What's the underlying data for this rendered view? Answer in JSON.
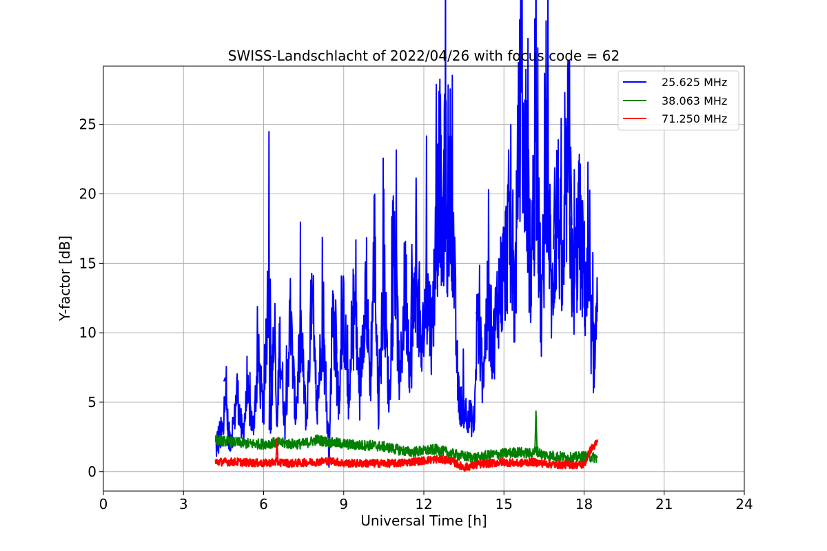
{
  "chart_data": {
    "type": "line",
    "title": "SWISS-Landschlacht of 2022/04/26 with focus code = 62",
    "xlabel": "Universal Time [h]",
    "ylabel": "Y-factor [dB]",
    "xlim": [
      0,
      24
    ],
    "ylim": [
      -1.4,
      29.2
    ],
    "xticks": [
      0,
      3,
      6,
      9,
      12,
      15,
      18,
      21,
      24
    ],
    "xtick_labels": [
      "0",
      "3",
      "6",
      "9",
      "12",
      "15",
      "18",
      "21",
      "24"
    ],
    "yticks": [
      0,
      5,
      10,
      15,
      20,
      25
    ],
    "ytick_labels": [
      "0",
      "5",
      "10",
      "15",
      "20",
      "25"
    ],
    "grid": true,
    "legend_position": "top-right",
    "series": [
      {
        "name": "25.625 MHz",
        "color": "#0000ff",
        "x": [
          4.2,
          4.35,
          4.5,
          4.55,
          4.7,
          4.9,
          5.0,
          5.2,
          5.4,
          5.6,
          5.8,
          6.0,
          6.2,
          6.25,
          6.4,
          6.5,
          6.6,
          6.8,
          7.0,
          7.2,
          7.4,
          7.6,
          7.8,
          8.0,
          8.2,
          8.4,
          8.45,
          8.6,
          8.8,
          9.0,
          9.2,
          9.4,
          9.6,
          9.8,
          10.0,
          10.15,
          10.3,
          10.5,
          10.7,
          10.9,
          11.1,
          11.3,
          11.5,
          11.7,
          11.9,
          12.1,
          12.3,
          12.5,
          12.6,
          12.7,
          12.8,
          12.9,
          13.0,
          13.1,
          13.2,
          13.3,
          13.5,
          13.7,
          13.9,
          14.0,
          14.2,
          14.4,
          14.6,
          14.8,
          15.0,
          15.2,
          15.4,
          15.6,
          15.7,
          15.8,
          16.0,
          16.2,
          16.4,
          16.6,
          16.8,
          17.0,
          17.2,
          17.4,
          17.6,
          17.8,
          18.0,
          18.2,
          18.35,
          18.5
        ],
        "y": [
          1.8,
          2.5,
          3.0,
          6.5,
          2.2,
          3.5,
          6.0,
          2.5,
          5.5,
          3.0,
          8.0,
          4.0,
          13.8,
          3.0,
          10.2,
          2.5,
          9.5,
          3.5,
          11.0,
          4.0,
          9.8,
          3.5,
          12.0,
          4.0,
          11.0,
          3.0,
          1.0,
          12.0,
          5.0,
          11.5,
          4.5,
          12.0,
          5.5,
          13.5,
          6.5,
          16.8,
          4.0,
          14.0,
          5.0,
          16.0,
          6.0,
          14.0,
          7.0,
          15.0,
          8.0,
          13.0,
          10.0,
          18.0,
          22.5,
          14.0,
          23.0,
          15.5,
          22.0,
          17.0,
          10.0,
          5.0,
          4.5,
          4.0,
          3.5,
          11.5,
          7.0,
          12.0,
          9.0,
          13.0,
          14.0,
          18.0,
          12.0,
          26.5,
          21.0,
          24.0,
          14.0,
          23.0,
          11.0,
          22.5,
          12.0,
          20.0,
          13.0,
          23.5,
          12.0,
          18.0,
          14.0,
          12.0,
          8.0,
          11.5
        ]
      },
      {
        "name": "38.063 MHz",
        "color": "#008000",
        "x": [
          4.2,
          4.5,
          5.0,
          5.5,
          6.0,
          6.5,
          7.0,
          7.5,
          8.0,
          8.5,
          9.0,
          9.5,
          10.0,
          10.5,
          11.0,
          11.5,
          12.0,
          12.5,
          13.0,
          13.5,
          14.0,
          14.5,
          15.0,
          15.5,
          16.0,
          16.2,
          16.5,
          17.0,
          17.5,
          18.0,
          18.5
        ],
        "y": [
          2.3,
          2.2,
          2.1,
          2.0,
          2.0,
          2.1,
          2.0,
          2.0,
          2.3,
          2.1,
          2.0,
          1.9,
          1.9,
          1.8,
          1.6,
          1.4,
          1.5,
          1.6,
          1.3,
          1.1,
          1.0,
          1.2,
          1.3,
          1.4,
          1.3,
          1.5,
          1.2,
          1.1,
          1.0,
          1.1,
          1.0
        ]
      },
      {
        "name": "71.250 MHz",
        "color": "#ff0000",
        "x": [
          4.2,
          5.0,
          6.0,
          6.5,
          7.0,
          8.0,
          8.5,
          9.0,
          10.0,
          11.0,
          12.0,
          12.5,
          13.0,
          13.5,
          14.0,
          14.5,
          15.0,
          15.5,
          16.0,
          17.0,
          18.0,
          18.25,
          18.5
        ],
        "y": [
          0.7,
          0.7,
          0.6,
          0.7,
          0.6,
          0.7,
          0.8,
          0.6,
          0.6,
          0.6,
          0.8,
          0.9,
          0.8,
          0.3,
          0.5,
          0.6,
          0.7,
          0.6,
          0.7,
          0.5,
          0.5,
          1.6,
          2.1
        ]
      }
    ],
    "peaks": [
      {
        "series": 0,
        "x": [
          4.55,
          6.25,
          8.7,
          10.15,
          11.55,
          12.75,
          13.0,
          14.0,
          15.55,
          15.75,
          16.9,
          17.5
        ],
        "y": [
          6.7,
          13.9,
          12.4,
          16.9,
          16.4,
          23.2,
          21.0,
          11.2,
          27.7,
          25.8,
          21.9,
          23.4
        ]
      },
      {
        "series": 1,
        "x": [
          16.2
        ],
        "y": [
          4.4
        ]
      },
      {
        "series": 2,
        "x": [
          6.5
        ],
        "y": [
          2.4
        ]
      }
    ]
  }
}
